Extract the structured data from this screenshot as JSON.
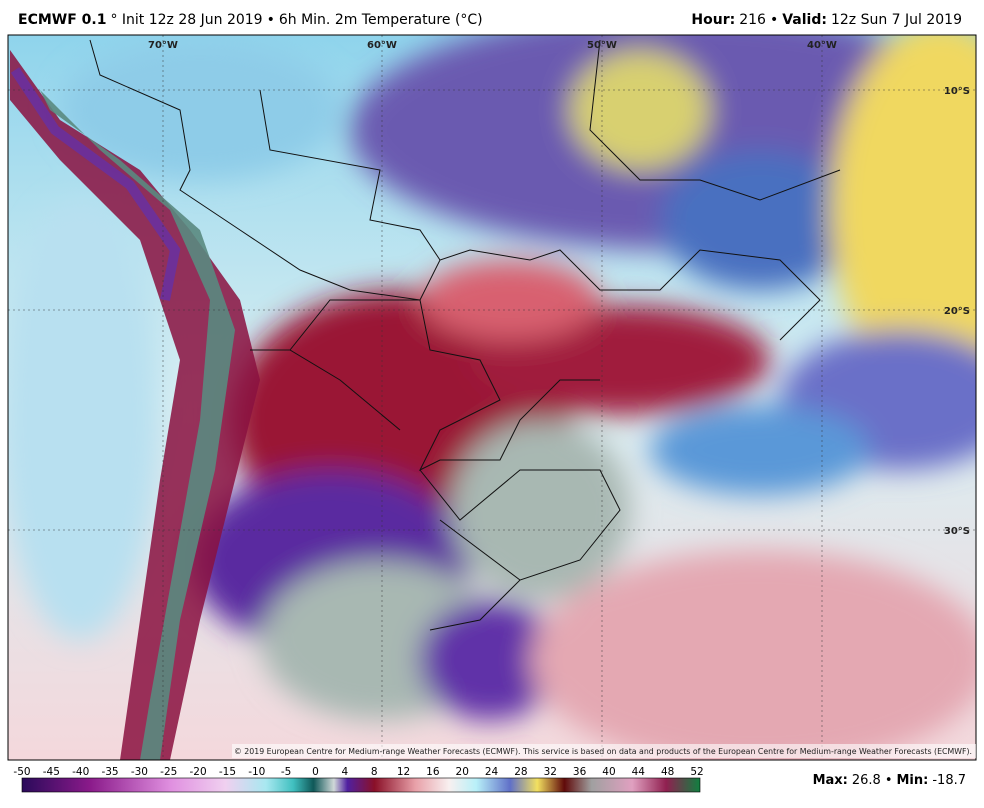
{
  "header": {
    "left": [
      {
        "text": "ECMWF 0.1",
        "bold": true
      },
      {
        "text": "° Init 12z 28 Jun 2019"
      },
      {
        "text": "•"
      },
      {
        "text": "6h Min. 2m Temperature (°C)"
      }
    ],
    "right": [
      {
        "text": "Hour:",
        "bold": true
      },
      {
        "text": "216"
      },
      {
        "text": "•"
      },
      {
        "text": "Valid:",
        "bold": true
      },
      {
        "text": "12z Sun 7 Jul 2019"
      }
    ]
  },
  "map": {
    "longitudes": [
      "70°W",
      "60°W",
      "50°W",
      "40°W"
    ],
    "latitudes": [
      "10°S",
      "20°S",
      "30°S"
    ],
    "credit": "© 2019 European Centre for Medium-range Weather Forecasts (ECMWF). This service is based on data and products of the European Centre for Medium-range Weather Forecasts (ECMWF)."
  },
  "colorbar": {
    "ticks": [
      -50,
      -45,
      -40,
      -35,
      -30,
      -25,
      -20,
      -15,
      -10,
      -5,
      0,
      4,
      8,
      12,
      16,
      20,
      24,
      28,
      32,
      36,
      40,
      44,
      48,
      52
    ]
  },
  "stats": {
    "max_label": "Max:",
    "max": 26.8,
    "sep": "•",
    "min_label": "Min:",
    "min": -18.7
  }
}
